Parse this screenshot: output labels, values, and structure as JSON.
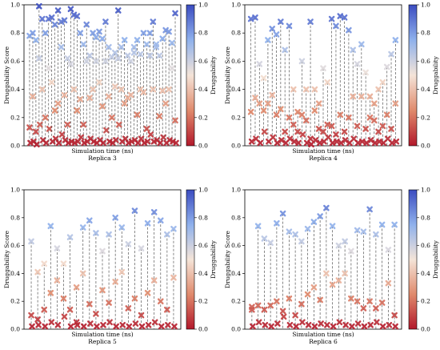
{
  "chart_data": [
    {
      "type": "scatter",
      "caption": "Replica 3",
      "xlabel": "Simulation time (ns)",
      "ylabel": "Druggability Score",
      "ylim": [
        0,
        1.0
      ],
      "yticks": [
        "0.0",
        "0.2",
        "0.4",
        "0.6",
        "0.8",
        "1.0"
      ],
      "colorbar": {
        "label": "Druggability",
        "ticks": [
          "0.0",
          "0.2",
          "0.4",
          "0.6",
          "0.8",
          "1.0"
        ]
      },
      "frames": [
        [
          0.78,
          0.13,
          0.02
        ],
        [
          0.8,
          0.35,
          0.03
        ],
        [
          0.75,
          0.1,
          0.01
        ],
        [
          0.99,
          0.62,
          0.15
        ],
        [
          0.9,
          0.4,
          0.04
        ],
        [
          0.8,
          0.2,
          0.02
        ],
        [
          0.9,
          0.55,
          0.12
        ],
        [
          0.91,
          0.45,
          0.03
        ],
        [
          0.86,
          0.25,
          0.05
        ],
        [
          0.96,
          0.3,
          0.02
        ],
        [
          0.88,
          0.7,
          0.08
        ],
        [
          0.89,
          0.36,
          0.04
        ],
        [
          0.62,
          0.15,
          0.02
        ],
        [
          0.97,
          0.58,
          0.03
        ],
        [
          0.93,
          0.4,
          0.02
        ],
        [
          0.92,
          0.25,
          0.03
        ],
        [
          0.8,
          0.33,
          0.06
        ],
        [
          0.72,
          0.15,
          0.02
        ],
        [
          0.86,
          0.6,
          0.03
        ],
        [
          0.64,
          0.34,
          0.05
        ],
        [
          0.8,
          0.4,
          0.03
        ],
        [
          0.77,
          0.6,
          0.02
        ],
        [
          0.81,
          0.45,
          0.04
        ],
        [
          0.76,
          0.28,
          0.02
        ],
        [
          0.88,
          0.6,
          0.11
        ],
        [
          0.7,
          0.35,
          0.03
        ],
        [
          0.63,
          0.2,
          0.02
        ],
        [
          0.66,
          0.42,
          0.04
        ],
        [
          0.96,
          0.62,
          0.15
        ],
        [
          0.7,
          0.4,
          0.03
        ],
        [
          0.75,
          0.3,
          0.05
        ],
        [
          0.64,
          0.34,
          0.02
        ],
        [
          0.6,
          0.36,
          0.03
        ],
        [
          0.66,
          0.7,
          0.04
        ],
        [
          0.75,
          0.22,
          0.02
        ],
        [
          0.65,
          0.4,
          0.05
        ],
        [
          0.8,
          0.38,
          0.02
        ],
        [
          0.72,
          0.12,
          0.03
        ],
        [
          0.8,
          0.64,
          0.08
        ],
        [
          0.88,
          0.4,
          0.03
        ],
        [
          0.72,
          0.7,
          0.04
        ],
        [
          0.64,
          0.21,
          0.02
        ],
        [
          0.76,
          0.39,
          0.06
        ],
        [
          0.82,
          0.3,
          0.02
        ],
        [
          0.81,
          0.4,
          0.04
        ],
        [
          0.73,
          0.55,
          0.03
        ],
        [
          0.94,
          0.18,
          0.02
        ]
      ]
    },
    {
      "type": "scatter",
      "caption": "Replica 4",
      "xlabel": "Simulation time (ns)",
      "ylabel": "Druggability Score",
      "ylim": [
        0,
        1.0
      ],
      "yticks": [
        "0.0",
        "0.2",
        "0.4",
        "0.6",
        "0.8",
        "1.0"
      ],
      "colorbar": {
        "label": "Druggability",
        "ticks": [
          "0.0",
          "0.2",
          "0.4",
          "0.6",
          "0.8",
          "1.0"
        ]
      },
      "frames": [
        [
          0.9,
          0.24,
          0.03
        ],
        [
          0.91,
          0.34,
          0.05
        ],
        [
          0.58,
          0.3,
          0.02
        ],
        [
          0.48,
          0.25,
          0.1
        ],
        [
          0.75,
          0.3,
          0.03
        ],
        [
          0.83,
          0.36,
          0.06
        ],
        [
          0.79,
          0.22,
          0.02
        ],
        [
          0.88,
          0.26,
          0.04
        ],
        [
          0.68,
          0.1,
          0.02
        ],
        [
          0.85,
          0.2,
          0.05
        ],
        [
          0.4,
          0.15,
          0.03
        ],
        [
          0.24,
          0.1,
          0.02
        ],
        [
          0.6,
          0.22,
          0.08
        ],
        [
          0.4,
          0.18,
          0.02
        ],
        [
          0.88,
          0.05,
          0.01
        ],
        [
          0.4,
          0.25,
          0.04
        ],
        [
          0.3,
          0.12,
          0.02
        ],
        [
          0.55,
          0.1,
          0.03
        ],
        [
          0.45,
          0.15,
          0.06
        ],
        [
          0.9,
          0.14,
          0.02
        ],
        [
          0.85,
          0.08,
          0.03
        ],
        [
          0.92,
          0.22,
          0.02
        ],
        [
          0.91,
          0.1,
          0.04
        ],
        [
          0.82,
          0.2,
          0.02
        ],
        [
          0.68,
          0.35,
          0.05
        ],
        [
          0.58,
          0.14,
          0.02
        ],
        [
          0.72,
          0.35,
          0.03
        ],
        [
          0.52,
          0.12,
          0.02
        ],
        [
          0.35,
          0.2,
          0.04
        ],
        [
          0.3,
          0.18,
          0.02
        ],
        [
          0.4,
          0.1,
          0.03
        ],
        [
          0.45,
          0.14,
          0.02
        ],
        [
          0.56,
          0.22,
          0.05
        ],
        [
          0.65,
          0.12,
          0.02
        ],
        [
          0.75,
          0.3,
          0.03
        ]
      ]
    },
    {
      "type": "scatter",
      "caption": "Replica 5",
      "xlabel": "Simulation time (ns)",
      "ylabel": "Druggability Score",
      "ylim": [
        0,
        1.0
      ],
      "yticks": [
        "0.0",
        "0.2",
        "0.4",
        "0.6",
        "0.8",
        "1.0"
      ],
      "colorbar": {
        "label": "Druggability",
        "ticks": [
          "0.0",
          "0.2",
          "0.4",
          "0.6",
          "0.8",
          "1.0"
        ]
      },
      "frames": [
        [
          0.63,
          0.1,
          0.02
        ],
        [
          0.41,
          0.07,
          0.03
        ],
        [
          0.47,
          0.14,
          0.02
        ],
        [
          0.74,
          0.26,
          0.05
        ],
        [
          0.58,
          0.35,
          0.03
        ],
        [
          0.47,
          0.22,
          0.09
        ],
        [
          0.66,
          0.14,
          0.02
        ],
        [
          0.3,
          0.05,
          0.03
        ],
        [
          0.73,
          0.4,
          0.02
        ],
        [
          0.78,
          0.18,
          0.04
        ],
        [
          0.69,
          0.11,
          0.02
        ],
        [
          0.56,
          0.28,
          0.03
        ],
        [
          0.68,
          0.19,
          0.05
        ],
        [
          0.8,
          0.34,
          0.02
        ],
        [
          0.73,
          0.41,
          0.03
        ],
        [
          0.61,
          0.15,
          0.02
        ],
        [
          0.85,
          0.22,
          0.04
        ],
        [
          0.58,
          0.1,
          0.02
        ],
        [
          0.76,
          0.26,
          0.03
        ],
        [
          0.84,
          0.35,
          0.05
        ],
        [
          0.78,
          0.2,
          0.02
        ],
        [
          0.68,
          0.14,
          0.03
        ],
        [
          0.72,
          0.37,
          0.02
        ]
      ]
    },
    {
      "type": "scatter",
      "caption": "Replica 6",
      "xlabel": "Simulation time (ns)",
      "ylabel": "Druggability Score",
      "ylim": [
        0,
        1.0
      ],
      "yticks": [
        "0.0",
        "0.2",
        "0.4",
        "0.6",
        "0.8",
        "1.0"
      ],
      "colorbar": {
        "label": "Druggability",
        "ticks": [
          "0.0",
          "0.2",
          "0.4",
          "0.6",
          "0.8",
          "1.0"
        ]
      },
      "frames": [
        [
          0.16,
          0.14,
          0.02
        ],
        [
          0.74,
          0.17,
          0.05
        ],
        [
          0.65,
          0.14,
          0.03
        ],
        [
          0.62,
          0.17,
          0.02
        ],
        [
          0.76,
          0.2,
          0.04
        ],
        [
          0.83,
          0.13,
          0.09
        ],
        [
          0.7,
          0.22,
          0.03
        ],
        [
          0.68,
          0.1,
          0.02
        ],
        [
          0.63,
          0.18,
          0.05
        ],
        [
          0.72,
          0.25,
          0.03
        ],
        [
          0.77,
          0.3,
          0.02
        ],
        [
          0.81,
          0.21,
          0.04
        ],
        [
          0.87,
          0.4,
          0.03
        ],
        [
          0.74,
          0.32,
          0.02
        ],
        [
          0.6,
          0.35,
          0.05
        ],
        [
          0.63,
          0.4,
          0.03
        ],
        [
          0.56,
          0.22,
          0.02
        ],
        [
          0.71,
          0.2,
          0.04
        ],
        [
          0.7,
          0.15,
          0.02
        ],
        [
          0.86,
          0.2,
          0.03
        ],
        [
          0.68,
          0.15,
          0.05
        ],
        [
          0.75,
          0.19,
          0.02
        ],
        [
          0.57,
          0.33,
          0.03
        ],
        [
          0.75,
          0.1,
          0.02
        ]
      ]
    }
  ]
}
